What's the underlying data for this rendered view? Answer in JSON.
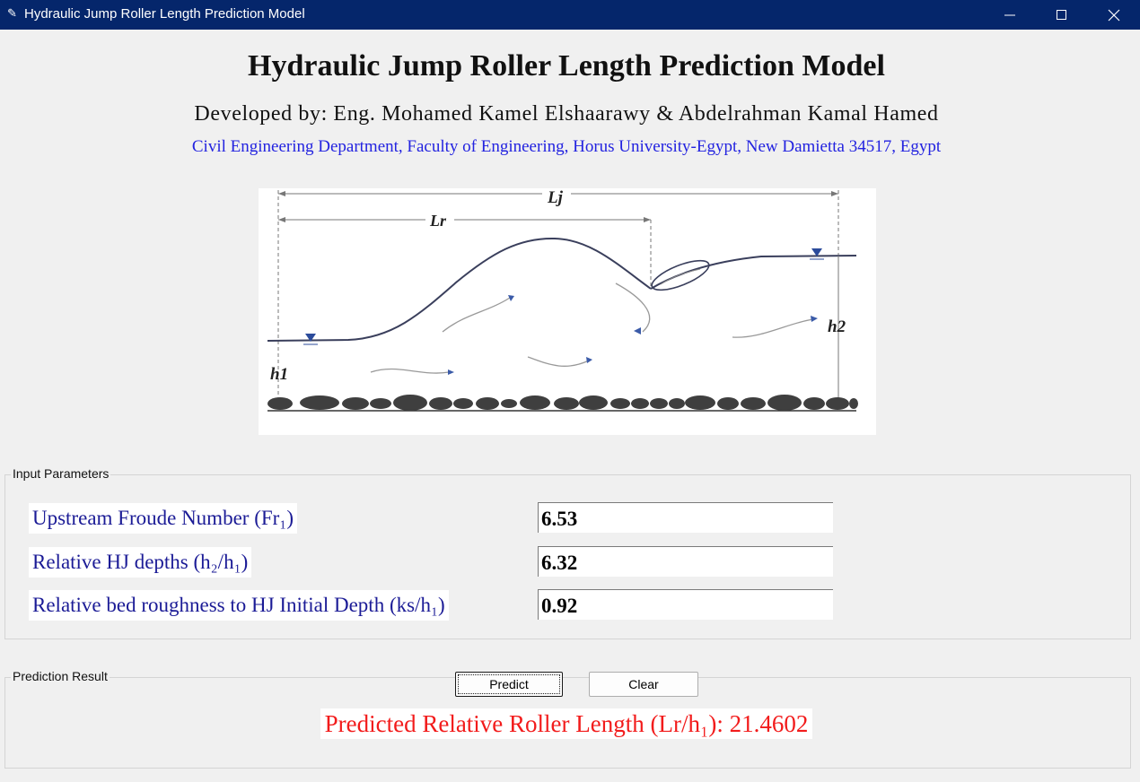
{
  "window": {
    "title": "Hydraulic Jump Roller Length Prediction Model"
  },
  "header": {
    "title": "Hydraulic Jump Roller Length Prediction Model",
    "developers": "Developed by: Eng. Mohamed Kamel Elshaarawy & Abdelrahman Kamal Hamed",
    "affiliation": "Civil Engineering Department, Faculty of Engineering, Horus University-Egypt, New Damietta 34517, Egypt"
  },
  "diagram": {
    "lj": "Lj",
    "lr": "Lr",
    "h1": "h1",
    "h2": "h2"
  },
  "input_frame": {
    "title": "Input Parameters",
    "params": [
      {
        "label": "Upstream Froude Number (Fr₁)",
        "value": "6.53"
      },
      {
        "label": "Relative HJ depths (h₂/h₁)",
        "value": "6.32"
      },
      {
        "label": "Relative bed roughness to HJ Initial Depth (ks/h₁)",
        "value": "0.92"
      }
    ]
  },
  "result_frame": {
    "title": "Prediction Result",
    "predict_label": "Predict",
    "clear_label": "Clear",
    "result_text": "Predicted Relative Roller Length (Lr/h₁): 21.4602"
  }
}
